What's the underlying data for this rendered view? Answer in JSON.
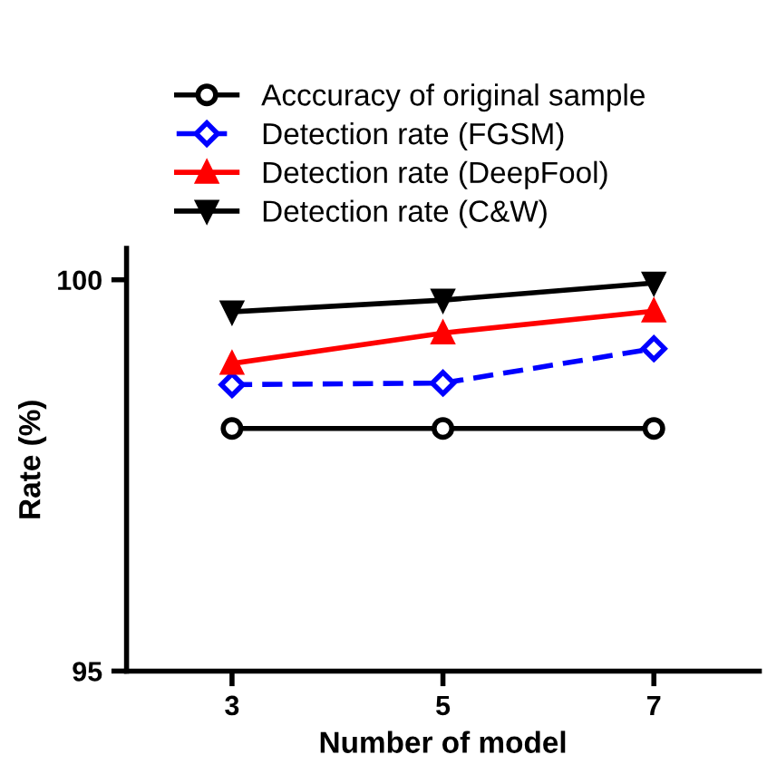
{
  "chart_data": {
    "type": "line",
    "xlabel": "Number of model",
    "ylabel": "Rate (%)",
    "x": [
      3,
      5,
      7
    ],
    "xlim": [
      2,
      8
    ],
    "xticks": [
      3,
      5,
      7
    ],
    "ylim": [
      95,
      100.4
    ],
    "yticks": [
      95,
      100
    ],
    "grid": false,
    "legend": "top",
    "series": [
      {
        "name": "Acccuracy of original sample",
        "color": "#000000",
        "values": [
          98.1,
          98.1,
          98.1
        ],
        "marker": "circle",
        "line_style": "solid"
      },
      {
        "name": "Detection rate (FGSM)",
        "color": "#0000ff",
        "values": [
          98.66,
          98.68,
          99.12
        ],
        "marker": "diamond",
        "line_style": "dashed"
      },
      {
        "name": "Detection rate (DeepFool)",
        "color": "#ff0000",
        "values": [
          98.93,
          99.32,
          99.6
        ],
        "marker": "triangle",
        "line_style": "solid"
      },
      {
        "name": "Detection rate (C&W)",
        "color": "#000000",
        "values": [
          99.59,
          99.74,
          99.96
        ],
        "marker": "triangle_down",
        "line_style": "solid"
      }
    ]
  }
}
